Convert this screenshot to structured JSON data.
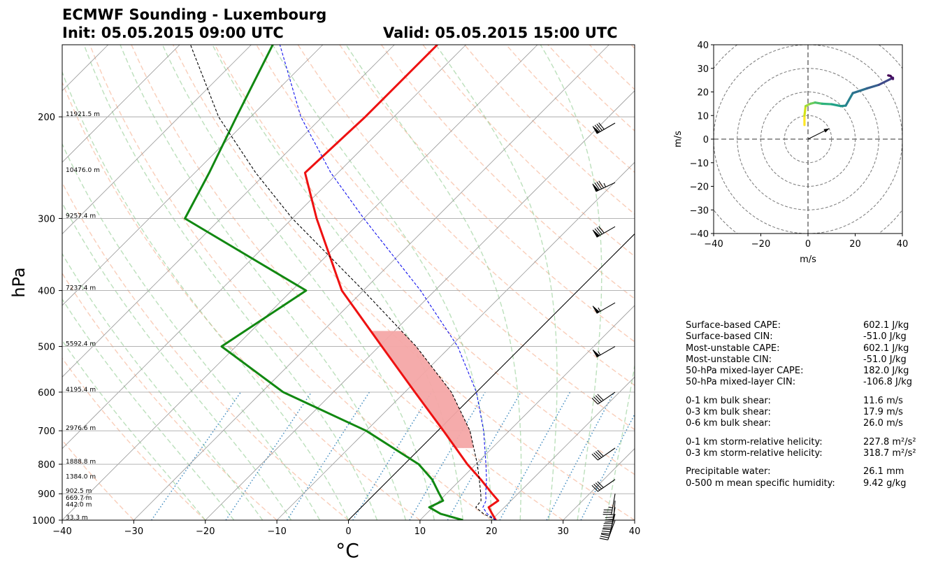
{
  "header": {
    "title": "ECMWF Sounding - Luxembourg",
    "init": "Init: 05.05.2015 09:00 UTC",
    "valid": "Valid: 05.05.2015 15:00 UTC"
  },
  "chart_data": [
    {
      "type": "line",
      "subtype": "skew-T log-p",
      "xlabel": "°C",
      "ylabel": "hPa",
      "xlim": [
        -40,
        40
      ],
      "ylim": [
        1000,
        150
      ],
      "xticks": [
        -40,
        -30,
        -20,
        -10,
        0,
        10,
        20,
        30,
        40
      ],
      "yticks": [
        1000,
        900,
        800,
        700,
        600,
        500,
        400,
        300,
        200
      ],
      "height_labels": [
        {
          "p": 1000,
          "text": "33.3 m"
        },
        {
          "p": 950,
          "text": "442.0 m"
        },
        {
          "p": 925,
          "text": "669.7 m"
        },
        {
          "p": 900,
          "text": "902.5 m"
        },
        {
          "p": 850,
          "text": "1384.0 m"
        },
        {
          "p": 800,
          "text": "1888.8 m"
        },
        {
          "p": 700,
          "text": "2976.6 m"
        },
        {
          "p": 600,
          "text": "4195.4 m"
        },
        {
          "p": 500,
          "text": "5592.4 m"
        },
        {
          "p": 400,
          "text": "7237.4 m"
        },
        {
          "p": 300,
          "text": "9257.4 m"
        },
        {
          "p": 250,
          "text": "10476.0 m"
        },
        {
          "p": 200,
          "text": "11921.5 m"
        }
      ],
      "series": [
        {
          "role": "temperature",
          "color": "#ee1111",
          "p": [
            1000,
            975,
            950,
            925,
            900,
            850,
            800,
            700,
            600,
            500,
            400,
            300,
            250,
            200,
            150
          ],
          "t": [
            20.6,
            19.2,
            17.8,
            18.2,
            16.4,
            12.8,
            8.8,
            0.8,
            -8.6,
            -19.6,
            -33.0,
            -46.6,
            -54.6,
            -54.0,
            -54.0
          ]
        },
        {
          "role": "dewpoint",
          "color": "#118811",
          "p": [
            1000,
            975,
            950,
            925,
            900,
            850,
            800,
            700,
            600,
            500,
            400,
            300,
            250,
            200,
            150
          ],
          "t": [
            16.0,
            12.0,
            9.5,
            10.5,
            9.0,
            6.0,
            2.0,
            -10.0,
            -27.0,
            -42.0,
            -38.0,
            -65.0,
            -68.0,
            -72.0,
            -77.0
          ]
        },
        {
          "role": "surface-parcel",
          "color": "#000000",
          "p": [
            1000,
            975,
            950,
            925,
            900,
            850,
            800,
            700,
            600,
            500,
            400,
            300,
            250,
            200,
            150
          ],
          "t": [
            20.6,
            18.0,
            16.0,
            15.8,
            14.8,
            12.6,
            10.2,
            4.5,
            -3.5,
            -14.8,
            -30.0,
            -50.0,
            -61.5,
            -74.5,
            -88.5
          ]
        },
        {
          "role": "mixed-layer-parcel",
          "color": "#1111ee",
          "p": [
            1000,
            975,
            950,
            925,
            900,
            850,
            800,
            700,
            600,
            500,
            400,
            300,
            250,
            200,
            150
          ],
          "t": [
            20.6,
            18.5,
            17.0,
            16.5,
            15.5,
            13.6,
            11.4,
            6.4,
            0.0,
            -9.0,
            -22.0,
            -40.0,
            -51.0,
            -63.0,
            -76.0
          ]
        }
      ],
      "cape_fill": {
        "color": "#f4a7a7",
        "p": [
          750,
          700,
          650,
          600,
          550,
          500,
          470
        ]
      },
      "wind_barbs": [
        {
          "p": 1000,
          "speed_kt": 30,
          "dir": 200
        },
        {
          "p": 975,
          "speed_kt": 30,
          "dir": 195
        },
        {
          "p": 950,
          "speed_kt": 32,
          "dir": 190
        },
        {
          "p": 925,
          "speed_kt": 35,
          "dir": 185
        },
        {
          "p": 900,
          "speed_kt": 38,
          "dir": 190
        },
        {
          "p": 850,
          "speed_kt": 40,
          "dir": 235
        },
        {
          "p": 750,
          "speed_kt": 40,
          "dir": 235
        },
        {
          "p": 600,
          "speed_kt": 40,
          "dir": 235
        },
        {
          "p": 500,
          "speed_kt": 55,
          "dir": 240
        },
        {
          "p": 420,
          "speed_kt": 55,
          "dir": 240
        },
        {
          "p": 310,
          "speed_kt": 80,
          "dir": 240
        },
        {
          "p": 260,
          "speed_kt": 85,
          "dir": 245
        },
        {
          "p": 205,
          "speed_kt": 80,
          "dir": 240
        }
      ]
    },
    {
      "type": "line",
      "subtype": "hodograph",
      "xlabel": "m/s",
      "ylabel": "m/s",
      "xlim": [
        -40,
        40
      ],
      "ylim": [
        -40,
        40
      ],
      "xticks": [
        -40,
        -20,
        0,
        20,
        40
      ],
      "yticks": [
        -40,
        -30,
        -20,
        -10,
        0,
        10,
        20,
        30,
        40
      ],
      "rings": [
        10,
        20,
        30,
        40,
        50
      ],
      "storm_motion": [
        9,
        4.5
      ],
      "series": [
        {
          "u": [
            -1.5,
            -1.5,
            -1.0,
            1.0,
            3.0,
            6.0,
            10.0,
            14.0,
            16.0,
            19.0,
            25.0,
            30.0,
            35.0,
            36.0,
            36.0,
            35.0,
            34.0
          ],
          "v": [
            6.0,
            10.0,
            14.0,
            15.0,
            15.5,
            15.0,
            14.8,
            14.0,
            14.2,
            19.5,
            21.5,
            23.0,
            25.5,
            26.0,
            25.5,
            26.8,
            27.0
          ]
        }
      ]
    }
  ],
  "stats": [
    [
      {
        "label": "Surface-based CAPE:",
        "value": "602.1 J/kg"
      },
      {
        "label": "Surface-based CIN:",
        "value": "-51.0 J/kg"
      },
      {
        "label": "Most-unstable CAPE:",
        "value": "602.1 J/kg"
      },
      {
        "label": "Most-unstable CIN:",
        "value": "-51.0 J/kg"
      },
      {
        "label": "50-hPa mixed-layer CAPE:",
        "value": "182.0 J/kg"
      },
      {
        "label": "50-hPa mixed-layer CIN:",
        "value": "-106.8 J/kg"
      }
    ],
    [
      {
        "label": "0-1 km bulk shear:",
        "value": "11.6 m/s"
      },
      {
        "label": "0-3 km bulk shear:",
        "value": "17.9 m/s"
      },
      {
        "label": "0-6 km bulk shear:",
        "value": "26.0 m/s"
      }
    ],
    [
      {
        "label": "0-1 km storm-relative helicity:",
        "value": "227.8 m²/s²"
      },
      {
        "label": "0-3 km storm-relative helicity:",
        "value": "318.7 m²/s²"
      }
    ],
    [
      {
        "label": "Precipitable water:",
        "value": "26.1 mm"
      },
      {
        "label": "0-500 m mean specific humidity:",
        "value": "9.42 g/kg"
      }
    ]
  ]
}
